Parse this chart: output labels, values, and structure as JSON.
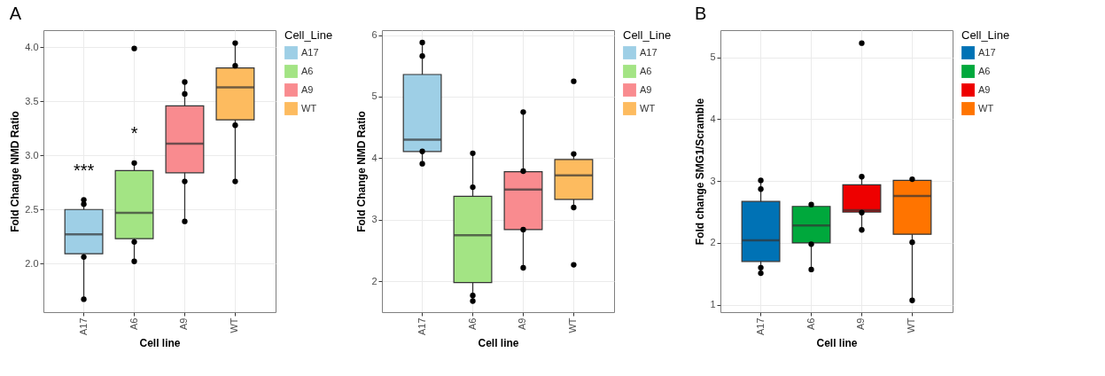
{
  "chart_data": [
    {
      "type": "box",
      "title": "A",
      "xlabel": "Cell line",
      "ylabel": "Fold Change NMD Ratio",
      "legend_title": "Cell_Line",
      "legend": "right",
      "grid": true,
      "categories": [
        "A17",
        "A6",
        "A9",
        "WT"
      ],
      "series": [
        {
          "name": "A17",
          "color": "#9ecfe6",
          "boxes": [
            {
              "low": 1.67,
              "q1": 2.09,
              "median": 2.27,
              "q3": 2.5,
              "high": 2.59
            },
            null,
            null,
            null
          ]
        },
        {
          "name": "A6",
          "color": "#a3e484",
          "boxes": [
            null,
            {
              "low": 2.02,
              "q1": 2.23,
              "median": 2.47,
              "q3": 2.86,
              "high": 2.94
            },
            null,
            null
          ]
        },
        {
          "name": "A9",
          "color": "#f98b8f",
          "boxes": [
            null,
            null,
            {
              "low": 2.39,
              "q1": 2.84,
              "median": 3.11,
              "q3": 3.46,
              "high": 3.68
            },
            null
          ]
        },
        {
          "name": "WT",
          "color": "#fdbb5f",
          "boxes": [
            null,
            null,
            null,
            {
              "low": 2.76,
              "q1": 3.33,
              "median": 3.63,
              "q3": 3.81,
              "high": 4.04
            }
          ]
        },
        {
          "type": "scatter",
          "color": "#000000",
          "x": [
            "A17",
            "A17",
            "A17",
            "A17",
            "A6",
            "A6",
            "A6",
            "A6",
            "A9",
            "A9",
            "A9",
            "A9",
            "WT",
            "WT",
            "WT",
            "WT"
          ],
          "values": [
            1.67,
            2.06,
            2.55,
            2.59,
            2.02,
            2.2,
            2.93,
            3.99,
            2.39,
            2.76,
            3.57,
            3.68,
            2.76,
            3.28,
            3.83,
            4.04
          ]
        }
      ],
      "ylim": [
        1.55,
        4.16
      ],
      "yticks": [
        {
          "value": 2,
          "label": "2.0"
        },
        {
          "value": 2.5,
          "label": "2.5"
        },
        {
          "value": 3,
          "label": "3.0"
        },
        {
          "value": 3.5,
          "label": "3.5"
        },
        {
          "value": 4,
          "label": "4.0"
        }
      ],
      "annotations": [
        "***",
        "*"
      ]
    },
    {
      "type": "box",
      "xlabel": "Cell line",
      "ylabel": "Fold Change NMD Ratio",
      "legend_title": "Cell_Line",
      "legend": "right",
      "grid": true,
      "categories": [
        "A17",
        "A6",
        "A9",
        "WT"
      ],
      "series": [
        {
          "name": "A17",
          "color": "#9ecfe6",
          "boxes": [
            {
              "low": 3.91,
              "q1": 4.11,
              "median": 4.3,
              "q3": 5.36,
              "high": 5.88
            },
            null,
            null,
            null
          ]
        },
        {
          "name": "A6",
          "color": "#a3e484",
          "boxes": [
            null,
            {
              "low": 1.68,
              "q1": 1.98,
              "median": 2.75,
              "q3": 3.38,
              "high": 4.08
            },
            null,
            null
          ]
        },
        {
          "name": "A9",
          "color": "#f98b8f",
          "boxes": [
            null,
            null,
            {
              "low": 2.22,
              "q1": 2.84,
              "median": 3.49,
              "q3": 3.78,
              "high": 4.75
            },
            null
          ]
        },
        {
          "name": "WT",
          "color": "#fdbb5f",
          "boxes": [
            null,
            null,
            null,
            {
              "low": 3.2,
              "q1": 3.33,
              "median": 3.72,
              "q3": 3.98,
              "high": 4.07
            }
          ]
        },
        {
          "type": "scatter",
          "color": "#000000",
          "x": [
            "A17",
            "A17",
            "A17",
            "A17",
            "A6",
            "A6",
            "A6",
            "A6",
            "A9",
            "A9",
            "A9",
            "A9",
            "WT",
            "WT",
            "WT",
            "WT"
          ],
          "values": [
            3.91,
            4.11,
            5.66,
            5.88,
            1.68,
            1.77,
            3.53,
            4.08,
            2.22,
            2.84,
            3.79,
            4.75,
            2.27,
            3.2,
            4.07,
            5.25
          ]
        }
      ],
      "ylim": [
        1.5,
        6.08
      ],
      "yticks": [
        2,
        3,
        4,
        5,
        6
      ]
    },
    {
      "type": "box",
      "title": "B",
      "xlabel": "Cell line",
      "ylabel": "Fold change SMG1/Scramble",
      "legend_title": "Cell_Line",
      "legend": "right",
      "grid": true,
      "categories": [
        "A17",
        "A6",
        "A9",
        "WT"
      ],
      "series": [
        {
          "name": "A17",
          "color": "#0072b5",
          "boxes": [
            {
              "low": 1.51,
              "q1": 1.7,
              "median": 2.04,
              "q3": 2.67,
              "high": 3.01
            },
            null,
            null,
            null
          ]
        },
        {
          "name": "A6",
          "color": "#00a83c",
          "boxes": [
            null,
            {
              "low": 1.57,
              "q1": 2.0,
              "median": 2.28,
              "q3": 2.59,
              "high": 2.62
            },
            null,
            null
          ]
        },
        {
          "name": "A9",
          "color": "#ee0000",
          "boxes": [
            null,
            null,
            {
              "low": 2.21,
              "q1": 2.5,
              "median": 2.53,
              "q3": 2.94,
              "high": 3.07
            },
            null
          ]
        },
        {
          "name": "WT",
          "color": "#ff7400",
          "boxes": [
            null,
            null,
            null,
            {
              "low": 1.07,
              "q1": 2.14,
              "median": 2.76,
              "q3": 3.01,
              "high": 3.04
            }
          ]
        },
        {
          "type": "scatter",
          "color": "#000000",
          "x": [
            "A17",
            "A17",
            "A17",
            "A17",
            "A6",
            "A6",
            "A6",
            "A9",
            "A9",
            "A9",
            "A9",
            "WT",
            "WT",
            "WT"
          ],
          "values": [
            1.51,
            1.6,
            2.87,
            3.01,
            1.57,
            1.98,
            2.62,
            2.21,
            2.49,
            3.07,
            5.23,
            1.07,
            2.01,
            3.03
          ]
        }
      ],
      "ylim": [
        0.88,
        5.44
      ],
      "yticks": [
        1,
        2,
        3,
        4,
        5
      ]
    }
  ]
}
